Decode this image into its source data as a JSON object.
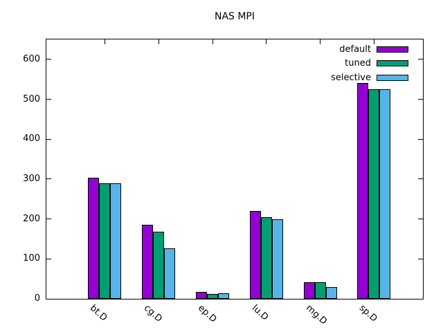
{
  "chart_data": {
    "type": "bar",
    "title": "NAS MPI",
    "categories": [
      "bt.D",
      "cg.D",
      "ep.D",
      "lu.D",
      "mg.D",
      "sp.D"
    ],
    "series": [
      {
        "name": "default",
        "color": "#9400d3",
        "values": [
          303,
          185,
          18,
          221,
          41,
          540
        ]
      },
      {
        "name": "tuned",
        "color": "#009e73",
        "values": [
          290,
          168,
          13,
          205,
          42,
          526
        ]
      },
      {
        "name": "selective",
        "color": "#56b4e9",
        "values": [
          289,
          126,
          14,
          199,
          30,
          525
        ]
      }
    ],
    "xlabel": "",
    "ylabel": "",
    "ylim": [
      0,
      650
    ],
    "yticks": [
      0,
      100,
      200,
      300,
      400,
      500,
      600
    ],
    "grid": false,
    "legend_position": "top-right-inside",
    "bar_border_color": "#000000",
    "background_color": "#ffffff",
    "text_color": "#000000"
  }
}
